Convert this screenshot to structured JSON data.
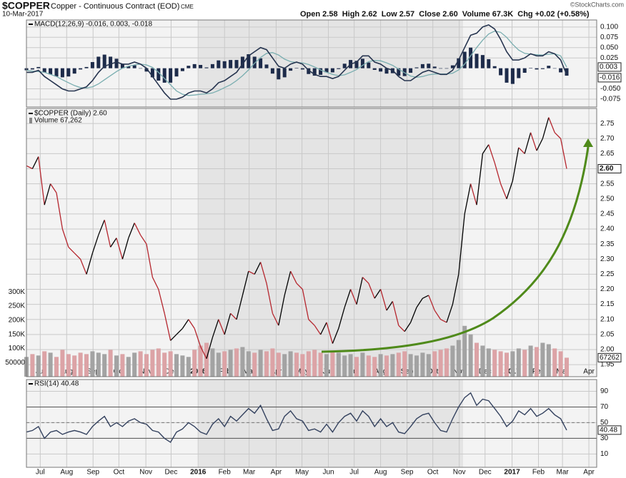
{
  "header": {
    "symbol": "$COPPER",
    "name": "Copper - Continuous Contract (EOD)",
    "exchange": "CME",
    "date": "10-Mar-2017",
    "quote": "Open 2.58  High 2.62  Low 2.57  Close 2.60  Volume 67.3K  Chg +0.02 (+0.58%)",
    "credit": "©StockCharts.com"
  },
  "chart_data": [
    {
      "type": "macd",
      "legend": "MACD(12,26,9) -0.016, 0.003, -0.018",
      "xlim": [
        0,
        95
      ],
      "ylim": [
        -0.094,
        0.117
      ],
      "yticks": [
        {
          "value": 0.1,
          "label": "0.100"
        },
        0.075,
        {
          "value": 0.05,
          "label": "0.050"
        },
        0.025,
        {
          "value": -0.05,
          "label": "-0.050"
        },
        -0.075
      ],
      "grid": true,
      "series": [
        {
          "name": "MACD",
          "color": "#26344f",
          "values": [
            -0.01,
            -0.01,
            -0.005,
            -0.02,
            -0.03,
            -0.04,
            -0.05,
            -0.055,
            -0.055,
            -0.05,
            -0.045,
            -0.03,
            -0.01,
            0.005,
            0.01,
            0.015,
            0.01,
            0.01,
            0.015,
            0.01,
            0.0,
            -0.02,
            -0.04,
            -0.06,
            -0.075,
            -0.075,
            -0.07,
            -0.06,
            -0.055,
            -0.055,
            -0.06,
            -0.05,
            -0.035,
            -0.03,
            -0.02,
            -0.01,
            0.01,
            0.03,
            0.04,
            0.05,
            0.045,
            0.025,
            0.005,
            0.0,
            0.01,
            0.015,
            0.01,
            -0.005,
            -0.015,
            -0.02,
            -0.02,
            -0.025,
            -0.02,
            -0.005,
            0.01,
            0.015,
            0.03,
            0.03,
            0.015,
            0.01,
            0.0,
            -0.005,
            -0.02,
            -0.03,
            -0.03,
            -0.02,
            -0.01,
            -0.005,
            -0.01,
            -0.015,
            -0.015,
            -0.005,
            0.02,
            0.05,
            0.08,
            0.085,
            0.1,
            0.105,
            0.095,
            0.07,
            0.04,
            0.02,
            0.02,
            0.025,
            0.035,
            0.03,
            0.03,
            0.04,
            0.035,
            0.02,
            -0.016
          ]
        },
        {
          "name": "Signal",
          "color": "#7aaeb0",
          "values": [
            -0.005,
            -0.007,
            -0.008,
            -0.01,
            -0.015,
            -0.02,
            -0.028,
            -0.035,
            -0.042,
            -0.047,
            -0.048,
            -0.045,
            -0.038,
            -0.028,
            -0.018,
            -0.008,
            0.0,
            0.005,
            0.008,
            0.01,
            0.008,
            0.002,
            -0.01,
            -0.025,
            -0.04,
            -0.055,
            -0.063,
            -0.066,
            -0.065,
            -0.063,
            -0.062,
            -0.06,
            -0.054,
            -0.047,
            -0.04,
            -0.03,
            -0.018,
            -0.004,
            0.012,
            0.026,
            0.036,
            0.038,
            0.032,
            0.022,
            0.016,
            0.014,
            0.013,
            0.009,
            0.003,
            -0.004,
            -0.01,
            -0.015,
            -0.018,
            -0.016,
            -0.01,
            -0.003,
            0.007,
            0.016,
            0.019,
            0.018,
            0.013,
            0.007,
            -0.002,
            -0.011,
            -0.019,
            -0.022,
            -0.02,
            -0.016,
            -0.014,
            -0.014,
            -0.014,
            -0.012,
            -0.004,
            0.01,
            0.03,
            0.05,
            0.068,
            0.083,
            0.09,
            0.087,
            0.075,
            0.058,
            0.044,
            0.036,
            0.034,
            0.033,
            0.032,
            0.034,
            0.035,
            0.03,
            0.003
          ]
        },
        {
          "name": "Histogram",
          "color": "#1d2b4a",
          "values": [
            -0.005,
            -0.003,
            0.003,
            -0.01,
            -0.015,
            -0.02,
            -0.022,
            -0.02,
            -0.013,
            -0.003,
            0.003,
            0.015,
            0.028,
            0.033,
            0.028,
            0.023,
            0.01,
            0.005,
            0.007,
            0.0,
            -0.008,
            -0.022,
            -0.03,
            -0.035,
            -0.035,
            -0.02,
            -0.007,
            0.006,
            0.01,
            0.008,
            0.002,
            0.01,
            0.019,
            0.017,
            0.02,
            0.02,
            0.028,
            0.034,
            0.028,
            0.024,
            0.009,
            -0.013,
            -0.027,
            -0.022,
            -0.006,
            0.001,
            -0.003,
            -0.014,
            -0.018,
            -0.016,
            -0.01,
            -0.01,
            -0.002,
            0.011,
            0.02,
            0.018,
            0.023,
            0.014,
            -0.004,
            -0.008,
            -0.013,
            -0.012,
            -0.018,
            -0.019,
            -0.011,
            0.002,
            0.01,
            0.011,
            0.004,
            -0.001,
            -0.001,
            0.007,
            0.024,
            0.04,
            0.05,
            0.035,
            0.032,
            0.022,
            0.005,
            -0.017,
            -0.035,
            -0.038,
            -0.024,
            -0.011,
            0.001,
            -0.003,
            -0.002,
            0.006,
            0.0,
            -0.01,
            -0.018
          ]
        }
      ]
    },
    {
      "type": "price",
      "legend": "$COPPER (Daily) 2.60",
      "volume_legend": "Volume 67,262",
      "xlim": [
        0,
        95
      ],
      "ylim": [
        1.91,
        2.8
      ],
      "xticks": [
        {
          "value": 2.3,
          "label": "Jul"
        },
        {
          "value": 6.7,
          "label": "Aug"
        },
        {
          "value": 11.1,
          "label": "Sep"
        },
        {
          "value": 15.4,
          "label": "Oct"
        },
        {
          "value": 19.9,
          "label": "Nov"
        },
        {
          "value": 24.1,
          "label": "Dec"
        },
        {
          "value": 28.6,
          "label": "2016"
        },
        {
          "value": 33.0,
          "label": "Feb"
        },
        {
          "value": 37.1,
          "label": "Mar"
        },
        {
          "value": 41.6,
          "label": "Apr"
        },
        {
          "value": 45.9,
          "label": "May"
        },
        {
          "value": 50.3,
          "label": "Jun"
        },
        {
          "value": 54.6,
          "label": "Jul"
        },
        {
          "value": 59.0,
          "label": "Aug"
        },
        {
          "value": 63.4,
          "label": "Sep"
        },
        {
          "value": 67.7,
          "label": "Oct"
        },
        {
          "value": 72.1,
          "label": "Nov"
        },
        {
          "value": 76.4,
          "label": "Dec"
        },
        {
          "value": 80.9,
          "label": "2017"
        },
        {
          "value": 85.3,
          "label": "Feb"
        },
        {
          "value": 89.3,
          "label": "Mar"
        },
        {
          "value": 93.7,
          "label": "Apr"
        }
      ],
      "yticks": [
        1.95,
        {
          "value": 2.0,
          "label": "2.00"
        },
        2.05,
        {
          "value": 2.1,
          "label": "2.10"
        },
        2.15,
        {
          "value": 2.2,
          "label": "2.20"
        },
        2.25,
        {
          "value": 2.3,
          "label": "2.30"
        },
        2.35,
        {
          "value": 2.4,
          "label": "2.40"
        },
        2.45,
        {
          "value": 2.5,
          "label": "2.50"
        },
        2.55,
        {
          "value": 2.6,
          "label": "2.60"
        },
        2.65,
        {
          "value": 2.7,
          "label": "2.70"
        },
        2.75
      ],
      "grid": true,
      "up_color": "#000000",
      "down_color": "#b5262e",
      "values": [
        2.61,
        2.6,
        2.64,
        2.48,
        2.55,
        2.52,
        2.4,
        2.34,
        2.32,
        2.3,
        2.25,
        2.32,
        2.38,
        2.43,
        2.34,
        2.37,
        2.3,
        2.37,
        2.42,
        2.38,
        2.35,
        2.24,
        2.2,
        2.12,
        2.03,
        2.05,
        2.07,
        2.1,
        2.07,
        2.01,
        1.97,
        2.04,
        2.1,
        2.05,
        2.12,
        2.1,
        2.18,
        2.26,
        2.25,
        2.29,
        2.22,
        2.12,
        2.08,
        2.18,
        2.26,
        2.22,
        2.2,
        2.1,
        2.08,
        2.05,
        2.09,
        2.02,
        2.07,
        2.14,
        2.2,
        2.15,
        2.24,
        2.22,
        2.17,
        2.2,
        2.13,
        2.16,
        2.08,
        2.06,
        2.09,
        2.14,
        2.17,
        2.18,
        2.13,
        2.1,
        2.09,
        2.15,
        2.25,
        2.45,
        2.55,
        2.48,
        2.65,
        2.68,
        2.62,
        2.55,
        2.5,
        2.56,
        2.67,
        2.65,
        2.72,
        2.66,
        2.7,
        2.77,
        2.72,
        2.7,
        2.6
      ],
      "last_value_label": "2.60",
      "volume": {
        "ylim": [
          0,
          950000
        ],
        "up_color": "#a3a3a3",
        "down_color": "#dca3a6",
        "yticks": [
          50000,
          {
            "value": 100000,
            "label": "100K"
          },
          {
            "value": 150000,
            "label": "150K"
          },
          {
            "value": 200000,
            "label": "200K"
          },
          {
            "value": 250000,
            "label": "250K"
          },
          {
            "value": 300000,
            "label": "300K"
          }
        ],
        "values": [
          70000,
          80000,
          75000,
          90000,
          85000,
          70000,
          95000,
          80000,
          75000,
          85000,
          80000,
          90000,
          85000,
          80000,
          95000,
          75000,
          80000,
          70000,
          85000,
          90000,
          80000,
          95000,
          100000,
          85000,
          90000,
          80000,
          75000,
          70000,
          95000,
          110000,
          120000,
          100000,
          85000,
          90000,
          95000,
          100000,
          105000,
          90000,
          85000,
          95000,
          90000,
          100000,
          85000,
          80000,
          90000,
          85000,
          80000,
          90000,
          95000,
          85000,
          80000,
          90000,
          85000,
          75000,
          80000,
          70000,
          85000,
          75000,
          70000,
          80000,
          75000,
          80000,
          85000,
          90000,
          80000,
          75000,
          85000,
          80000,
          90000,
          95000,
          100000,
          110000,
          130000,
          180000,
          150000,
          120000,
          110000,
          100000,
          95000,
          90000,
          85000,
          90000,
          100000,
          95000,
          110000,
          105000,
          120000,
          115000,
          100000,
          90000,
          67262
        ]
      }
    },
    {
      "type": "rsi",
      "legend": "RSI(14) 40.48",
      "color": "#34425f",
      "xlim": [
        0,
        95
      ],
      "ylim": [
        -7,
        105
      ],
      "yticks": [
        10,
        30,
        50,
        70,
        90
      ],
      "grid": true,
      "overbought": 70,
      "oversold": 30,
      "midline": 50,
      "xticks": [
        {
          "value": 2.3,
          "label": "Jul"
        },
        {
          "value": 6.7,
          "label": "Aug"
        },
        {
          "value": 11.1,
          "label": "Sep"
        },
        {
          "value": 15.4,
          "label": "Oct"
        },
        {
          "value": 19.9,
          "label": "Nov"
        },
        {
          "value": 24.1,
          "label": "Dec"
        },
        {
          "value": 28.6,
          "label": "2016"
        },
        {
          "value": 33.0,
          "label": "Feb"
        },
        {
          "value": 37.1,
          "label": "Mar"
        },
        {
          "value": 41.6,
          "label": "Apr"
        },
        {
          "value": 45.9,
          "label": "May"
        },
        {
          "value": 50.3,
          "label": "Jun"
        },
        {
          "value": 54.6,
          "label": "Jul"
        },
        {
          "value": 59.0,
          "label": "Aug"
        },
        {
          "value": 63.4,
          "label": "Sep"
        },
        {
          "value": 67.7,
          "label": "Oct"
        },
        {
          "value": 72.1,
          "label": "Nov"
        },
        {
          "value": 76.4,
          "label": "Dec"
        },
        {
          "value": 80.9,
          "label": "2017"
        },
        {
          "value": 85.3,
          "label": "Feb"
        },
        {
          "value": 89.3,
          "label": "Mar"
        },
        {
          "value": 93.7,
          "label": "Apr"
        }
      ],
      "values": [
        38,
        40,
        45,
        30,
        38,
        40,
        35,
        38,
        40,
        38,
        35,
        45,
        52,
        58,
        45,
        50,
        45,
        52,
        55,
        50,
        48,
        40,
        38,
        30,
        25,
        38,
        42,
        50,
        45,
        38,
        35,
        48,
        55,
        45,
        58,
        52,
        60,
        68,
        62,
        72,
        55,
        40,
        42,
        58,
        65,
        55,
        52,
        40,
        42,
        38,
        48,
        38,
        50,
        58,
        62,
        52,
        65,
        58,
        45,
        55,
        45,
        50,
        38,
        36,
        45,
        55,
        60,
        62,
        50,
        40,
        38,
        55,
        70,
        82,
        88,
        72,
        80,
        78,
        68,
        58,
        45,
        52,
        65,
        60,
        68,
        58,
        62,
        68,
        60,
        55,
        40.48
      ]
    }
  ]
}
